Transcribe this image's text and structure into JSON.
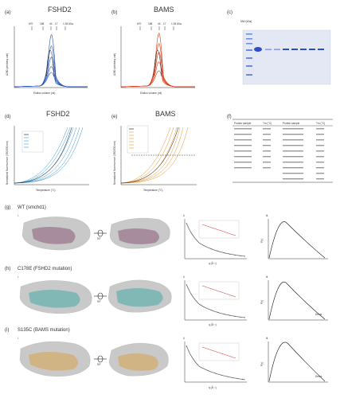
{
  "panels": {
    "a": {
      "letter": "(a)",
      "title": "FSHD2",
      "xlabel": "Elution volume (ml)",
      "ylabel": "A280 (arbitrary unit)",
      "markers": [
        "670",
        "158",
        "44",
        "17",
        "1.35 kDa"
      ],
      "color": "#1f4fb6"
    },
    "b": {
      "letter": "(b)",
      "title": "BAMS",
      "xlabel": "Elution volume (ml)",
      "ylabel": "A280 (arbitrary unit)",
      "markers": [
        "670",
        "158",
        "44",
        "17",
        "1.35 kDa"
      ],
      "color": "#d63a12"
    },
    "c": {
      "letter": "(c)",
      "mw_label": "MW (kDa)"
    },
    "d": {
      "letter": "(d)",
      "title": "FSHD2",
      "xlabel": "Temperature (°C)",
      "ylabel": "Normalized fluorescence (350/330 nm)"
    },
    "e": {
      "letter": "(e)",
      "title": "BAMS",
      "xlabel": "Temperature (°C)",
      "ylabel": "Normalized fluorescence (350/330 nm)"
    },
    "f": {
      "letter": "(f)",
      "col_headers": [
        "Protein sample",
        "Tm (°C)",
        "Protein sample",
        "Tm (°C)"
      ]
    },
    "g": {
      "letter": "(g)",
      "title": "WT (smchd1)",
      "sub": [
        "i.",
        "ii.",
        "iii."
      ]
    },
    "h": {
      "letter": "(h)",
      "title": "C178E (FSHD2 mutation)",
      "sub": [
        "i.",
        "ii.",
        "iii."
      ]
    },
    "i": {
      "letter": "(i)",
      "title": "S135C (BAMS mutation)",
      "sub": [
        "i.",
        "ii.",
        "iii."
      ]
    }
  },
  "saxs": {
    "xlabel": "q (Å⁻¹)",
    "rotation": "90°",
    "guinier_label": "ln I(q)",
    "pr_label": "P(r)",
    "dmax_label": "Dmax"
  },
  "colors": {
    "blue": "#1f4fb6",
    "orange": "#d63a12",
    "lightblue": "#3a9ad9",
    "gel_band": "#2d4fc4"
  }
}
